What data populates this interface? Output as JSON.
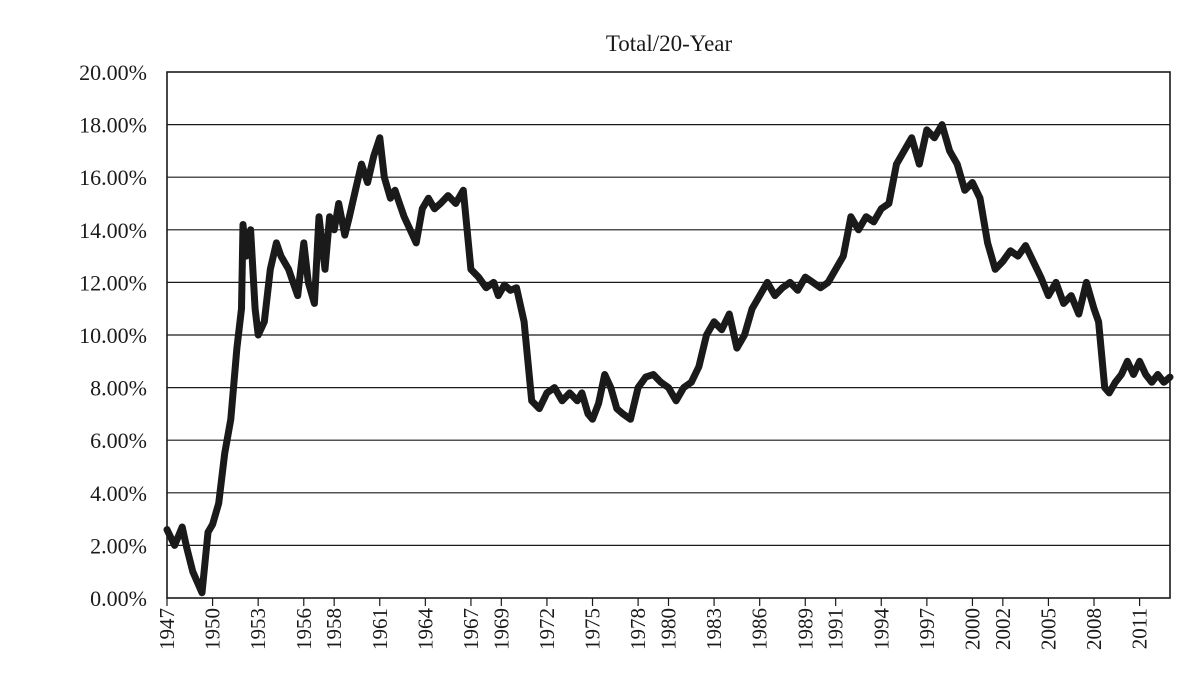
{
  "chart_data": {
    "type": "line",
    "title": "Total/20-Year",
    "xlabel": "",
    "ylabel": "",
    "xlim": [
      1947,
      2013
    ],
    "ylim": [
      0,
      20
    ],
    "y_ticks": [
      0,
      2,
      4,
      6,
      8,
      10,
      12,
      14,
      16,
      18,
      20
    ],
    "y_tick_labels": [
      "0.00%",
      "2.00%",
      "4.00%",
      "6.00%",
      "8.00%",
      "10.00%",
      "12.00%",
      "14.00%",
      "16.00%",
      "18.00%",
      "20.00%"
    ],
    "x_ticks": [
      1947,
      1950,
      1953,
      1956,
      1958,
      1961,
      1964,
      1967,
      1969,
      1972,
      1975,
      1978,
      1980,
      1983,
      1986,
      1989,
      1991,
      1994,
      1997,
      2000,
      2002,
      2005,
      2008,
      2011
    ],
    "x_tick_labels": [
      "1947",
      "1950",
      "1953",
      "1956",
      "1958",
      "1961",
      "1964",
      "1967",
      "1969",
      "1972",
      "1975",
      "1978",
      "1980",
      "1983",
      "1986",
      "1989",
      "1991",
      "1994",
      "1997",
      "2000",
      "2002",
      "2005",
      "2008",
      "2011"
    ],
    "grid": "horizontal",
    "series": [
      {
        "x": [
          1947.0,
          1947.5,
          1948.0,
          1948.3,
          1948.7,
          1949.0,
          1949.3,
          1949.7,
          1950.0,
          1950.4,
          1950.8,
          1951.2,
          1951.6,
          1951.9,
          1952.0,
          1952.2,
          1952.5,
          1952.8,
          1953.0,
          1953.4,
          1953.8,
          1954.2,
          1954.5,
          1955.0,
          1955.3,
          1955.6,
          1956.0,
          1956.3,
          1956.7,
          1957.0,
          1957.4,
          1957.7,
          1958.0,
          1958.3,
          1958.7,
          1959.0,
          1959.4,
          1959.8,
          1960.2,
          1960.6,
          1961.0,
          1961.3,
          1961.7,
          1962.0,
          1962.3,
          1962.6,
          1963.0,
          1963.4,
          1963.8,
          1964.2,
          1964.6,
          1965.0,
          1965.5,
          1966.0,
          1966.5,
          1967.0,
          1967.5,
          1968.0,
          1968.5,
          1968.8,
          1969.2,
          1969.6,
          1970.0,
          1970.5,
          1971.0,
          1971.5,
          1972.0,
          1972.5,
          1973.0,
          1973.5,
          1974.0,
          1974.3,
          1974.7,
          1975.0,
          1975.4,
          1975.8,
          1976.2,
          1976.6,
          1977.0,
          1977.5,
          1978.0,
          1978.5,
          1979.0,
          1979.5,
          1980.0,
          1980.5,
          1981.0,
          1981.5,
          1982.0,
          1982.5,
          1983.0,
          1983.5,
          1984.0,
          1984.5,
          1985.0,
          1985.5,
          1986.0,
          1986.5,
          1987.0,
          1987.5,
          1988.0,
          1988.5,
          1989.0,
          1989.5,
          1990.0,
          1990.5,
          1991.0,
          1991.5,
          1992.0,
          1992.5,
          1993.0,
          1993.5,
          1994.0,
          1994.5,
          1995.0,
          1995.5,
          1996.0,
          1996.5,
          1997.0,
          1997.5,
          1998.0,
          1998.5,
          1999.0,
          1999.5,
          2000.0,
          2000.5,
          2001.0,
          2001.5,
          2002.0,
          2002.5,
          2003.0,
          2003.5,
          2004.0,
          2004.5,
          2005.0,
          2005.5,
          2006.0,
          2006.5,
          2007.0,
          2007.5,
          2008.0,
          2008.3,
          2008.7,
          2009.0,
          2009.4,
          2009.8,
          2010.2,
          2010.6,
          2011.0,
          2011.4,
          2011.8,
          2012.2,
          2012.6,
          2013.0
        ],
        "values": [
          2.6,
          2.0,
          2.7,
          1.9,
          1.0,
          0.6,
          0.2,
          2.5,
          2.8,
          3.6,
          5.5,
          6.8,
          9.5,
          11.0,
          14.2,
          13.0,
          14.0,
          11.0,
          10.0,
          10.5,
          12.5,
          13.5,
          13.0,
          12.5,
          12.0,
          11.5,
          13.5,
          12.0,
          11.2,
          14.5,
          12.5,
          14.5,
          14.0,
          15.0,
          13.8,
          14.5,
          15.5,
          16.5,
          15.8,
          16.8,
          17.5,
          16.0,
          15.2,
          15.5,
          15.0,
          14.5,
          14.0,
          13.5,
          14.8,
          15.2,
          14.8,
          15.0,
          15.3,
          15.0,
          15.5,
          12.5,
          12.2,
          11.8,
          12.0,
          11.5,
          11.9,
          11.7,
          11.8,
          10.5,
          7.5,
          7.2,
          7.8,
          8.0,
          7.5,
          7.8,
          7.5,
          7.8,
          7.0,
          6.8,
          7.4,
          8.5,
          8.0,
          7.2,
          7.0,
          6.8,
          8.0,
          8.4,
          8.5,
          8.2,
          8.0,
          7.5,
          8.0,
          8.2,
          8.8,
          10.0,
          10.5,
          10.2,
          10.8,
          9.5,
          10.0,
          11.0,
          11.5,
          12.0,
          11.5,
          11.8,
          12.0,
          11.7,
          12.2,
          12.0,
          11.8,
          12.0,
          12.5,
          13.0,
          14.5,
          14.0,
          14.5,
          14.3,
          14.8,
          15.0,
          16.5,
          17.0,
          17.5,
          16.5,
          17.8,
          17.5,
          18.0,
          17.0,
          16.5,
          15.5,
          15.8,
          15.2,
          13.5,
          12.5,
          12.8,
          13.2,
          13.0,
          13.4,
          12.8,
          12.2,
          11.5,
          12.0,
          11.2,
          11.5,
          10.8,
          12.0,
          11.0,
          10.5,
          8.0,
          7.8,
          8.2,
          8.5,
          9.0,
          8.5,
          9.0,
          8.5,
          8.2,
          8.5,
          8.2,
          8.4
        ]
      }
    ]
  }
}
